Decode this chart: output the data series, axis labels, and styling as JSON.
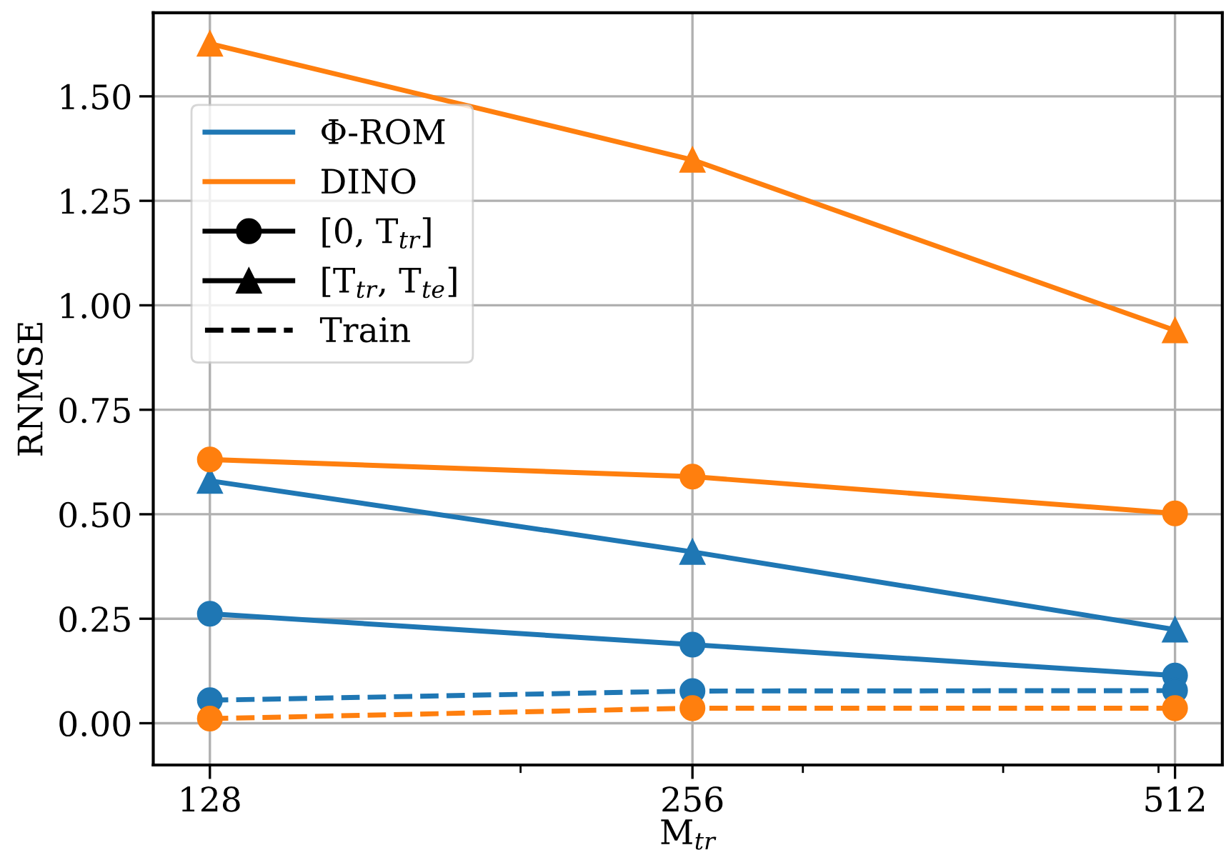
{
  "chart_data": {
    "type": "line",
    "xlabel": "M$_{tr}$",
    "ylabel": "RNMSE",
    "x": [
      128,
      256,
      512
    ],
    "log": "x",
    "xlim": [
      118,
      548
    ],
    "xticks": [
      128,
      256,
      512,
      {
        "value": 200,
        "label": null
      },
      {
        "value": 300,
        "label": null
      },
      {
        "value": 400,
        "label": null
      },
      {
        "value": 500,
        "label": null
      }
    ],
    "ylim": [
      -0.1,
      1.7
    ],
    "yticks": [
      {
        "value": 0,
        "label": "0.00"
      },
      {
        "value": 0.25,
        "label": "0.25"
      },
      {
        "value": 0.5,
        "label": "0.50"
      },
      {
        "value": 0.75,
        "label": "0.75"
      },
      {
        "value": 1.0,
        "label": "1.00"
      },
      {
        "value": 1.25,
        "label": "1.25"
      },
      {
        "value": 1.5,
        "label": "1.50"
      }
    ],
    "grid": true,
    "legend": "top left",
    "series": [
      {
        "color": "#1f77b4",
        "marker": "circle",
        "line_style": "solid",
        "values": [
          0.262,
          0.188,
          0.114
        ]
      },
      {
        "color": "#1f77b4",
        "marker": "triangle",
        "line_style": "solid",
        "values": [
          0.58,
          0.41,
          0.224
        ]
      },
      {
        "color": "#1f77b4",
        "marker": "circle",
        "line_style": "dashed",
        "values": [
          0.055,
          0.077,
          0.078
        ]
      },
      {
        "color": "#ff7f0e",
        "marker": "circle",
        "line_style": "solid",
        "values": [
          0.631,
          0.59,
          0.502
        ]
      },
      {
        "color": "#ff7f0e",
        "marker": "triangle",
        "line_style": "solid",
        "values": [
          1.626,
          1.348,
          0.94
        ]
      },
      {
        "color": "#ff7f0e",
        "marker": "circle",
        "line_style": "dashed",
        "values": [
          0.011,
          0.036,
          0.036
        ]
      },
      {
        "name": "Φ-ROM",
        "color": "#1f77b4",
        "marker": "none",
        "line_style": "solid",
        "values": [
          null,
          null,
          null
        ]
      },
      {
        "name": "DINO",
        "color": "#ff7f0e",
        "marker": "none",
        "line_style": "solid",
        "values": [
          null,
          null,
          null
        ]
      },
      {
        "name": "[0, T$_{tr}$]",
        "color": "#000000",
        "marker": "circle",
        "line_style": "solid",
        "values": [
          null,
          null,
          null
        ]
      },
      {
        "name": "[T$_{tr}$, T$_{te}$]",
        "color": "#000000",
        "marker": "triangle",
        "line_style": "solid",
        "values": [
          null,
          null,
          null
        ]
      },
      {
        "name": "Train",
        "color": "#000000",
        "marker": "none",
        "line_style": "dashed",
        "values": [
          null,
          null,
          null
        ]
      }
    ]
  }
}
